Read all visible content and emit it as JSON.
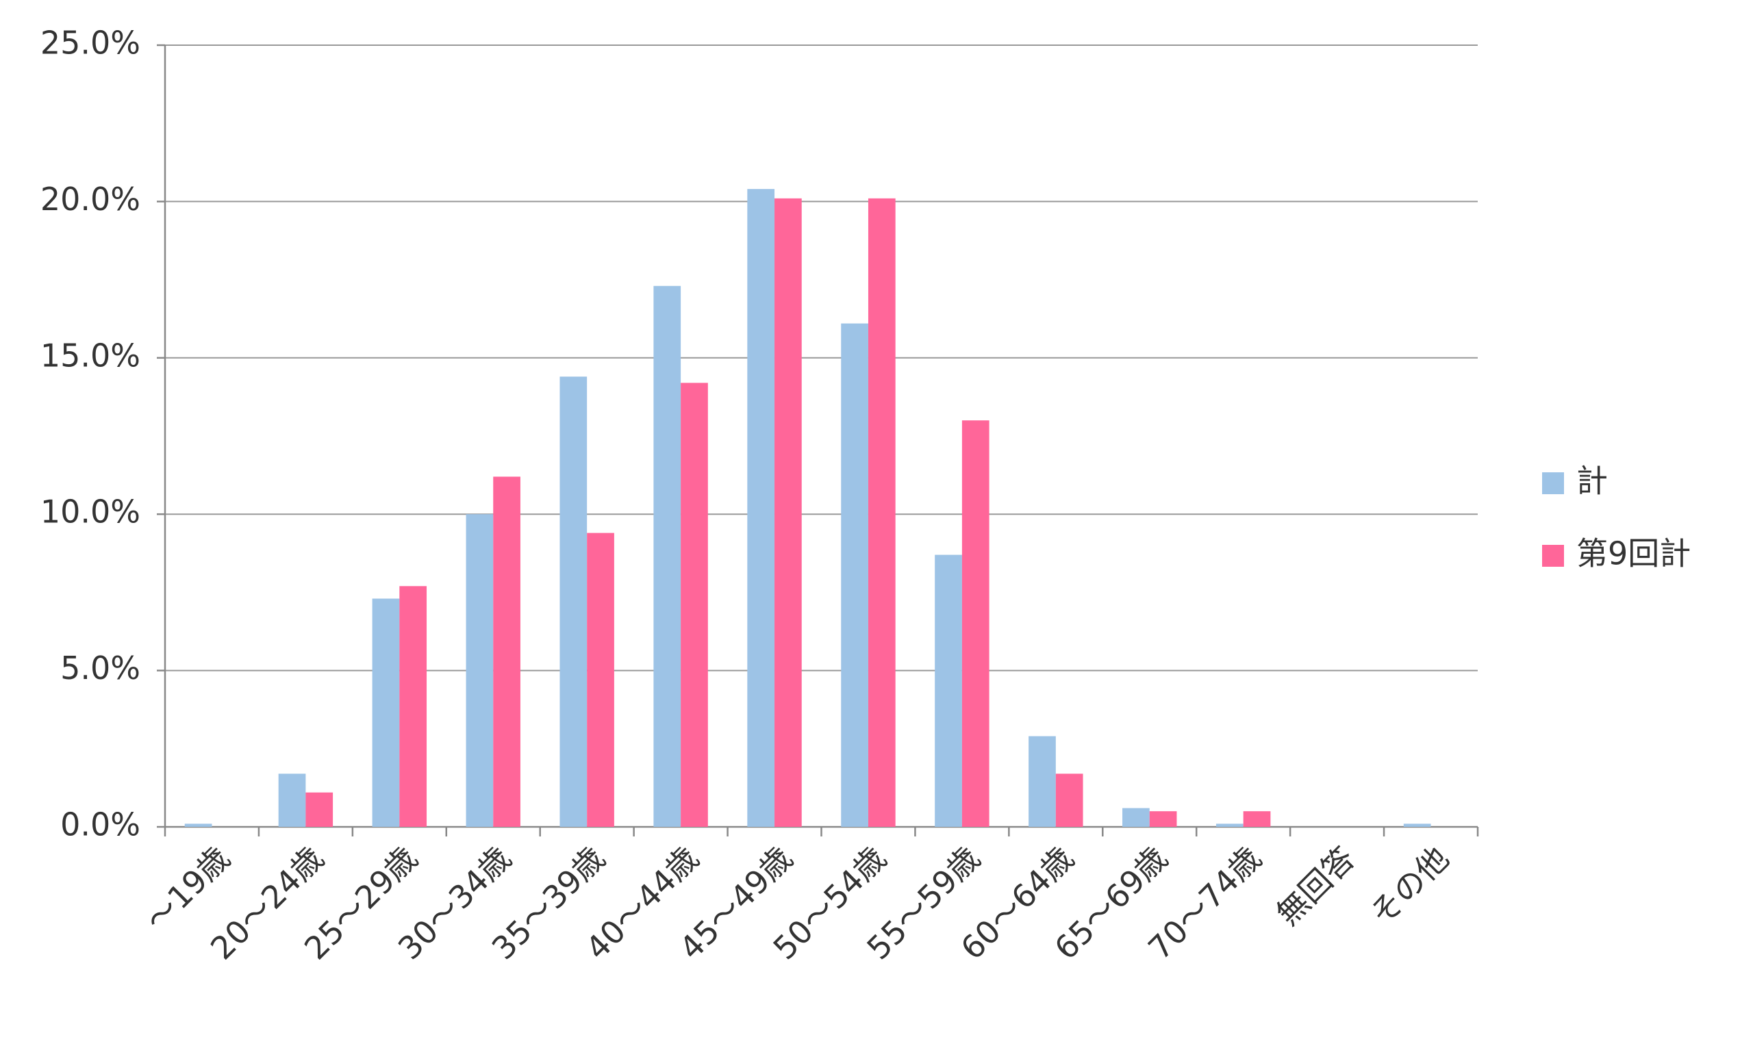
{
  "chart_data": {
    "type": "bar",
    "categories": [
      "～19歳",
      "20～24歳",
      "25～29歳",
      "30～34歳",
      "35～39歳",
      "40～44歳",
      "45～49歳",
      "50～54歳",
      "55～59歳",
      "60～64歳",
      "65～69歳",
      "70～74歳",
      "無回答",
      "その他"
    ],
    "series": [
      {
        "name": "計",
        "color": "#9dc3e6",
        "values": [
          0.1,
          1.7,
          7.3,
          10.0,
          14.4,
          17.3,
          20.4,
          16.1,
          8.7,
          2.9,
          0.6,
          0.1,
          0,
          0.1
        ]
      },
      {
        "name": "第9回計",
        "color": "#ff6699",
        "values": [
          0,
          1.1,
          7.7,
          11.2,
          9.4,
          14.2,
          20.1,
          20.1,
          13.0,
          1.7,
          0.5,
          0.5,
          0,
          0
        ]
      }
    ],
    "ylim": [
      0,
      25
    ],
    "yticks": [
      {
        "value": 0,
        "label": "0.0%"
      },
      {
        "value": 5,
        "label": "5.0%"
      },
      {
        "value": 10,
        "label": "10.0%"
      },
      {
        "value": 15,
        "label": "15.0%"
      },
      {
        "value": 20,
        "label": "20.0%"
      },
      {
        "value": 25,
        "label": "25.0%"
      }
    ],
    "grid": true,
    "legend": "right"
  }
}
